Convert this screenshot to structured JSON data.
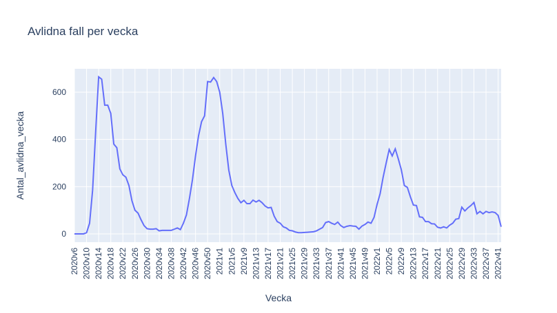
{
  "chart_data": {
    "type": "line",
    "title": "Avlidna fall per vecka",
    "x_label": "Vecka",
    "y_label": "Antal_avlidna_vecka",
    "categories": [
      "2020v6",
      null,
      null,
      null,
      "2020v10",
      null,
      null,
      null,
      "2020v14",
      null,
      null,
      null,
      "2020v18",
      null,
      null,
      null,
      "2020v22",
      null,
      null,
      null,
      "2020v26",
      null,
      null,
      null,
      "2020v30",
      null,
      null,
      null,
      "2020v34",
      null,
      null,
      null,
      "2020v38",
      null,
      null,
      null,
      "2020v42",
      null,
      null,
      null,
      "2020v46",
      null,
      null,
      null,
      "2020v50",
      null,
      null,
      null,
      "2021v1",
      null,
      null,
      null,
      "2021v5",
      null,
      null,
      null,
      "2021v9",
      null,
      null,
      null,
      "2021v13",
      null,
      null,
      null,
      "2021v17",
      null,
      null,
      null,
      "2021v21",
      null,
      null,
      null,
      "2021v25",
      null,
      null,
      null,
      "2021v29",
      null,
      null,
      null,
      "2021v33",
      null,
      null,
      null,
      "2021v37",
      null,
      null,
      null,
      "2021v41",
      null,
      null,
      null,
      "2021v45",
      null,
      null,
      null,
      "2021v49",
      null,
      null,
      null,
      "2022v1",
      null,
      null,
      null,
      "2022v5",
      null,
      null,
      null,
      "2022v9",
      null,
      null,
      null,
      "2022v13",
      null,
      null,
      null,
      "2022v17",
      null,
      null,
      null,
      "2022v21",
      null,
      null,
      null,
      "2022v25",
      null,
      null,
      null,
      "2022v29",
      null,
      null,
      null,
      "2022v33",
      null,
      null,
      null,
      "2022v37",
      null,
      null,
      null,
      "2022v41",
      null
    ],
    "values": [
      0,
      0,
      0,
      0,
      5,
      45,
      185,
      430,
      665,
      655,
      545,
      545,
      510,
      380,
      365,
      275,
      250,
      240,
      205,
      140,
      100,
      88,
      60,
      35,
      22,
      20,
      20,
      22,
      13,
      15,
      15,
      15,
      15,
      20,
      25,
      18,
      45,
      80,
      150,
      230,
      330,
      415,
      475,
      500,
      645,
      643,
      662,
      645,
      600,
      510,
      380,
      270,
      205,
      175,
      150,
      132,
      142,
      128,
      128,
      143,
      135,
      142,
      132,
      118,
      110,
      112,
      75,
      52,
      45,
      30,
      25,
      15,
      13,
      8,
      5,
      5,
      6,
      7,
      8,
      9,
      13,
      20,
      27,
      48,
      52,
      45,
      40,
      50,
      35,
      27,
      32,
      35,
      33,
      32,
      20,
      33,
      40,
      50,
      45,
      70,
      125,
      170,
      240,
      300,
      357,
      330,
      360,
      318,
      272,
      205,
      197,
      157,
      122,
      120,
      72,
      70,
      52,
      52,
      43,
      42,
      28,
      25,
      30,
      25,
      37,
      45,
      62,
      65,
      113,
      97,
      110,
      120,
      133,
      85,
      95,
      85,
      95,
      90,
      93,
      90,
      78,
      30
    ],
    "color": "#636efa",
    "ylim": [
      -35,
      699
    ],
    "yticks": [
      0,
      200,
      400,
      600
    ],
    "grid": true
  }
}
